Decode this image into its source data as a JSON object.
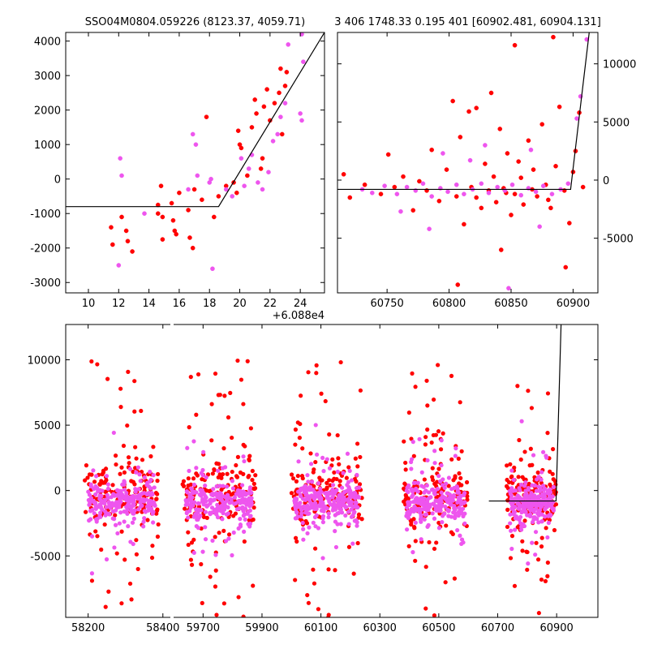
{
  "colors": {
    "red_points": "#ff0000",
    "pink_points": "#ee55ee",
    "model_line": "#000000"
  },
  "chart_data": [
    {
      "id": "top-left",
      "type": "scatter",
      "title": "SSO04M0804.059226 (8123.37, 4059.71)",
      "xlim": [
        8.5,
        25.6
      ],
      "ylim": [
        -3300,
        4250
      ],
      "xticks": [
        10,
        12,
        14,
        16,
        18,
        20,
        22,
        24
      ],
      "yticks": [
        -3000,
        -2000,
        -1000,
        0,
        1000,
        2000,
        3000,
        4000
      ],
      "x_offset_label": "+6.088e4",
      "y_axis_side": "left",
      "model_line": [
        [
          8.5,
          -800
        ],
        [
          18.6,
          -800
        ],
        [
          25.6,
          4250
        ]
      ],
      "series": [
        {
          "color_key": "red_points",
          "points": [
            [
              11.5,
              -1400
            ],
            [
              11.6,
              -1900
            ],
            [
              12.2,
              -1100
            ],
            [
              12.5,
              -1500
            ],
            [
              12.6,
              -1800
            ],
            [
              12.9,
              -2100
            ],
            [
              14.6,
              -750
            ],
            [
              14.6,
              -1000
            ],
            [
              14.8,
              -200
            ],
            [
              14.9,
              -1750
            ],
            [
              14.9,
              -1100
            ],
            [
              15.5,
              -700
            ],
            [
              15.6,
              -1200
            ],
            [
              15.7,
              -1500
            ],
            [
              15.8,
              -1600
            ],
            [
              16.0,
              -400
            ],
            [
              16.6,
              -900
            ],
            [
              16.7,
              -1700
            ],
            [
              16.9,
              -2000
            ],
            [
              17.0,
              -300
            ],
            [
              17.5,
              -600
            ],
            [
              18.3,
              -1100
            ],
            [
              18.6,
              -500
            ],
            [
              19.1,
              -200
            ],
            [
              19.6,
              -100
            ],
            [
              19.8,
              -400
            ],
            [
              20.0,
              1000
            ],
            [
              20.1,
              900
            ],
            [
              20.5,
              100
            ],
            [
              20.8,
              1500
            ],
            [
              21.0,
              2300
            ],
            [
              21.1,
              1900
            ],
            [
              21.4,
              300
            ],
            [
              21.5,
              600
            ],
            [
              21.8,
              2600
            ],
            [
              22.0,
              1700
            ],
            [
              22.3,
              2200
            ],
            [
              22.6,
              2500
            ],
            [
              22.7,
              3200
            ],
            [
              22.8,
              1300
            ],
            [
              23.0,
              2700
            ],
            [
              23.1,
              3100
            ],
            [
              17.8,
              1800
            ],
            [
              19.9,
              1400
            ],
            [
              21.6,
              2100
            ]
          ]
        },
        {
          "color_key": "pink_points",
          "points": [
            [
              12.0,
              -2500
            ],
            [
              12.1,
              600
            ],
            [
              12.2,
              100
            ],
            [
              13.7,
              -1000
            ],
            [
              16.6,
              -300
            ],
            [
              16.9,
              1300
            ],
            [
              17.1,
              1000
            ],
            [
              17.2,
              100
            ],
            [
              18.0,
              -100
            ],
            [
              18.1,
              0
            ],
            [
              18.2,
              -2600
            ],
            [
              19.1,
              -300
            ],
            [
              19.5,
              -500
            ],
            [
              20.1,
              600
            ],
            [
              20.3,
              -200
            ],
            [
              20.6,
              300
            ],
            [
              20.8,
              700
            ],
            [
              21.2,
              -100
            ],
            [
              21.5,
              -300
            ],
            [
              21.9,
              200
            ],
            [
              22.2,
              1100
            ],
            [
              22.5,
              1300
            ],
            [
              22.7,
              1800
            ],
            [
              23.0,
              2200
            ],
            [
              23.2,
              3900
            ],
            [
              24.0,
              1900
            ],
            [
              24.1,
              1700
            ],
            [
              24.2,
              3400
            ],
            [
              24.1,
              4200
            ]
          ]
        }
      ]
    },
    {
      "id": "top-right",
      "type": "scatter",
      "title": "3 406 1748.33 0.195 401 [60902.481, 60904.131]",
      "xlim": [
        60710,
        60920
      ],
      "ylim": [
        -9700,
        12700
      ],
      "xticks": [
        60750,
        60800,
        60850,
        60900
      ],
      "yticks": [
        -5000,
        0,
        5000,
        10000
      ],
      "y_axis_side": "right",
      "model_line": [
        [
          60710,
          -800
        ],
        [
          60898,
          -800
        ],
        [
          60913,
          12700
        ]
      ],
      "series": [
        {
          "color_key": "red_points",
          "points": [
            [
              60715,
              500
            ],
            [
              60720,
              -1500
            ],
            [
              60732,
              -400
            ],
            [
              60745,
              -1200
            ],
            [
              60751,
              2200
            ],
            [
              60756,
              -600
            ],
            [
              60763,
              300
            ],
            [
              60771,
              -2600
            ],
            [
              60776,
              -100
            ],
            [
              60782,
              -900
            ],
            [
              60786,
              2600
            ],
            [
              60792,
              -1800
            ],
            [
              60798,
              900
            ],
            [
              60803,
              6800
            ],
            [
              60806,
              -1400
            ],
            [
              60809,
              3700
            ],
            [
              60812,
              -3800
            ],
            [
              60816,
              5900
            ],
            [
              60818,
              -600
            ],
            [
              60822,
              6200
            ],
            [
              60826,
              -2400
            ],
            [
              60829,
              1400
            ],
            [
              60832,
              -900
            ],
            [
              60834,
              7500
            ],
            [
              60838,
              -1900
            ],
            [
              60841,
              4400
            ],
            [
              60844,
              -700
            ],
            [
              60847,
              2300
            ],
            [
              60850,
              -3000
            ],
            [
              60853,
              -1200
            ],
            [
              60856,
              1600
            ],
            [
              60860,
              -2100
            ],
            [
              60864,
              3400
            ],
            [
              60867,
              -800
            ],
            [
              60871,
              -1400
            ],
            [
              60875,
              4800
            ],
            [
              60878,
              -400
            ],
            [
              60882,
              -2400
            ],
            [
              60886,
              1200
            ],
            [
              60889,
              6300
            ],
            [
              60893,
              -900
            ],
            [
              60897,
              -3700
            ],
            [
              60900,
              700
            ],
            [
              60902,
              2500
            ],
            [
              60905,
              5800
            ],
            [
              60908,
              -600
            ],
            [
              60822,
              -1500
            ],
            [
              60836,
              300
            ],
            [
              60846,
              -1100
            ],
            [
              60858,
              200
            ],
            [
              60868,
              900
            ],
            [
              60880,
              -1700
            ],
            [
              60842,
              -6000
            ],
            [
              60807,
              -9000
            ],
            [
              60853,
              11600
            ],
            [
              60884,
              12300
            ],
            [
              60894,
              -7500
            ]
          ]
        },
        {
          "color_key": "pink_points",
          "points": [
            [
              60730,
              -800
            ],
            [
              60738,
              -1100
            ],
            [
              60748,
              -500
            ],
            [
              60758,
              -1200
            ],
            [
              60766,
              -600
            ],
            [
              60773,
              -900
            ],
            [
              60779,
              -300
            ],
            [
              60786,
              -1400
            ],
            [
              60793,
              -700
            ],
            [
              60799,
              -1000
            ],
            [
              60806,
              -400
            ],
            [
              60812,
              -1200
            ],
            [
              60819,
              -800
            ],
            [
              60826,
              -300
            ],
            [
              60832,
              -1100
            ],
            [
              60839,
              -600
            ],
            [
              60845,
              -900
            ],
            [
              60851,
              -400
            ],
            [
              60858,
              -1300
            ],
            [
              60864,
              -700
            ],
            [
              60870,
              -1000
            ],
            [
              60876,
              -500
            ],
            [
              60883,
              -1200
            ],
            [
              60890,
              -800
            ],
            [
              60896,
              -300
            ],
            [
              60761,
              -2700
            ],
            [
              60784,
              -4200
            ],
            [
              60817,
              1700
            ],
            [
              60829,
              3000
            ],
            [
              60848,
              -9300
            ],
            [
              60873,
              -4000
            ],
            [
              60903,
              5300
            ],
            [
              60906,
              7200
            ],
            [
              60911,
              12100
            ],
            [
              60795,
              2300
            ],
            [
              60866,
              2600
            ]
          ]
        }
      ]
    },
    {
      "id": "bottom",
      "type": "scatter",
      "title": "",
      "y_axis_side": "left",
      "ylim": [
        -9700,
        12700
      ],
      "yticks": [
        -5000,
        0,
        5000,
        10000
      ],
      "broken_x_axis": true,
      "panels": [
        {
          "xlim": [
            58140,
            58420
          ],
          "xticks": [
            58200,
            58400
          ]
        },
        {
          "xlim": [
            59600,
            61040
          ],
          "xticks": [
            59700,
            59900,
            60100,
            60300,
            60500,
            60700,
            60900
          ]
        }
      ],
      "model_line": [
        [
          60670,
          -800
        ],
        [
          60898,
          -800
        ],
        [
          60915,
          12700
        ]
      ],
      "clusters": [
        {
          "x_center": 58290,
          "x_half_width": 90,
          "x_min": 58190,
          "x_max": 58390,
          "n_red": 170,
          "n_pink": 230
        },
        {
          "x_center": 59750,
          "x_half_width": 115,
          "x_min": 59630,
          "x_max": 59880,
          "n_red": 170,
          "n_pink": 230
        },
        {
          "x_center": 60120,
          "x_half_width": 110,
          "x_min": 60000,
          "x_max": 60240,
          "n_red": 180,
          "n_pink": 260
        },
        {
          "x_center": 60495,
          "x_half_width": 105,
          "x_min": 60380,
          "x_max": 60600,
          "n_red": 160,
          "n_pink": 240
        },
        {
          "x_center": 60815,
          "x_half_width": 80,
          "x_min": 60730,
          "x_max": 60900,
          "n_red": 170,
          "n_pink": 220
        }
      ]
    }
  ]
}
